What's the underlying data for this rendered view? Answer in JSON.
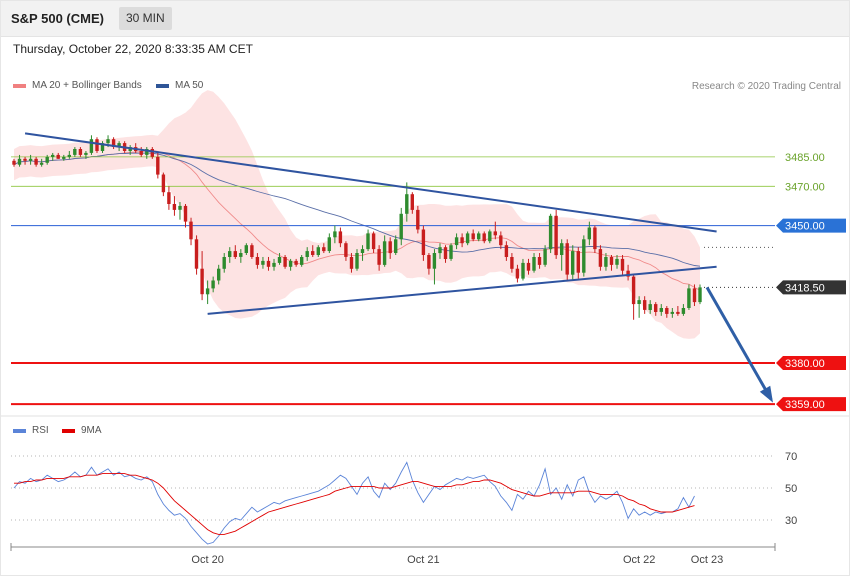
{
  "header": {
    "title": "S&P 500 (CME)",
    "timeframe": "30 MIN"
  },
  "timestamp": "Thursday, October 22, 2020 8:33:35 AM CET",
  "credit": "Research © 2020 Trading Central",
  "legend_main": [
    {
      "label": "MA 20 + Bollinger Bands",
      "color": "#f08080"
    },
    {
      "label": "MA 50",
      "color": "#2f5597"
    }
  ],
  "legend_rsi": [
    {
      "label": "RSI",
      "color": "#5b84d8"
    },
    {
      "label": "9MA",
      "color": "#e00000"
    }
  ],
  "chart_data": [
    {
      "type": "candlestick",
      "ylim": [
        3355,
        3515
      ],
      "price_levels": [
        {
          "value": 3485.0,
          "label": "3485.00",
          "color": "#8dc63f",
          "style": "resistance"
        },
        {
          "value": 3470.0,
          "label": "3470.00",
          "color": "#8dc63f",
          "style": "resistance"
        },
        {
          "value": 3450.0,
          "label": "3450.00",
          "color": "#2a5fd6",
          "style": "pivot"
        },
        {
          "value": 3418.5,
          "label": "3418.50",
          "color": "#333333",
          "style": "last"
        },
        {
          "value": 3380.0,
          "label": "3380.00",
          "color": "#ee1111",
          "style": "support"
        },
        {
          "value": 3359.0,
          "label": "3359.00",
          "color": "#ee1111",
          "style": "support"
        }
      ],
      "candles": [
        [
          3483,
          3484,
          3480,
          3481
        ],
        [
          3481,
          3486,
          3480,
          3484
        ],
        [
          3484,
          3485,
          3481,
          3483
        ],
        [
          3483,
          3486,
          3481,
          3484
        ],
        [
          3484,
          3485,
          3480,
          3481
        ],
        [
          3481,
          3484,
          3480,
          3482
        ],
        [
          3482,
          3486,
          3481,
          3485
        ],
        [
          3485,
          3487,
          3483,
          3486
        ],
        [
          3486,
          3487,
          3484,
          3484
        ],
        [
          3484,
          3486,
          3483,
          3485
        ],
        [
          3485,
          3488,
          3484,
          3486
        ],
        [
          3486,
          3490,
          3485,
          3489
        ],
        [
          3489,
          3490,
          3485,
          3486
        ],
        [
          3486,
          3488,
          3484,
          3487
        ],
        [
          3487,
          3496,
          3486,
          3494
        ],
        [
          3494,
          3495,
          3487,
          3488
        ],
        [
          3488,
          3493,
          3487,
          3492
        ],
        [
          3492,
          3496,
          3490,
          3494
        ],
        [
          3494,
          3495,
          3489,
          3490
        ],
        [
          3490,
          3493,
          3488,
          3492
        ],
        [
          3492,
          3493,
          3487,
          3488
        ],
        [
          3488,
          3491,
          3486,
          3490
        ],
        [
          3490,
          3492,
          3487,
          3488
        ],
        [
          3488,
          3490,
          3485,
          3486
        ],
        [
          3486,
          3490,
          3484,
          3489
        ],
        [
          3489,
          3490,
          3484,
          3485
        ],
        [
          3485,
          3487,
          3474,
          3476
        ],
        [
          3476,
          3477,
          3465,
          3467
        ],
        [
          3467,
          3470,
          3458,
          3461
        ],
        [
          3461,
          3465,
          3455,
          3458
        ],
        [
          3458,
          3462,
          3453,
          3460
        ],
        [
          3460,
          3461,
          3449,
          3452
        ],
        [
          3452,
          3454,
          3440,
          3443
        ],
        [
          3443,
          3445,
          3425,
          3428
        ],
        [
          3428,
          3437,
          3412,
          3415
        ],
        [
          3415,
          3422,
          3410,
          3418
        ],
        [
          3418,
          3424,
          3416,
          3422
        ],
        [
          3422,
          3430,
          3420,
          3428
        ],
        [
          3428,
          3436,
          3426,
          3434
        ],
        [
          3434,
          3439,
          3431,
          3437
        ],
        [
          3437,
          3440,
          3433,
          3434
        ],
        [
          3434,
          3438,
          3431,
          3436
        ],
        [
          3436,
          3441,
          3435,
          3440
        ],
        [
          3440,
          3441,
          3433,
          3434
        ],
        [
          3434,
          3436,
          3428,
          3430
        ],
        [
          3430,
          3434,
          3428,
          3432
        ],
        [
          3432,
          3434,
          3427,
          3429
        ],
        [
          3429,
          3433,
          3427,
          3431
        ],
        [
          3431,
          3436,
          3430,
          3434
        ],
        [
          3434,
          3435,
          3428,
          3429
        ],
        [
          3429,
          3433,
          3427,
          3432
        ],
        [
          3432,
          3433,
          3429,
          3430
        ],
        [
          3430,
          3435,
          3429,
          3434
        ],
        [
          3434,
          3439,
          3432,
          3437
        ],
        [
          3437,
          3440,
          3434,
          3435
        ],
        [
          3435,
          3440,
          3434,
          3439
        ],
        [
          3439,
          3441,
          3436,
          3437
        ],
        [
          3437,
          3446,
          3436,
          3444
        ],
        [
          3444,
          3450,
          3441,
          3447
        ],
        [
          3447,
          3449,
          3439,
          3441
        ],
        [
          3441,
          3442,
          3432,
          3434
        ],
        [
          3434,
          3436,
          3426,
          3428
        ],
        [
          3428,
          3438,
          3427,
          3436
        ],
        [
          3436,
          3440,
          3432,
          3438
        ],
        [
          3438,
          3448,
          3437,
          3446
        ],
        [
          3446,
          3447,
          3436,
          3438
        ],
        [
          3438,
          3440,
          3427,
          3430
        ],
        [
          3430,
          3445,
          3429,
          3442
        ],
        [
          3442,
          3444,
          3433,
          3436
        ],
        [
          3436,
          3445,
          3435,
          3443
        ],
        [
          3443,
          3459,
          3440,
          3456
        ],
        [
          3456,
          3472,
          3452,
          3466
        ],
        [
          3466,
          3467,
          3456,
          3458
        ],
        [
          3458,
          3460,
          3446,
          3448
        ],
        [
          3448,
          3450,
          3432,
          3435
        ],
        [
          3435,
          3436,
          3425,
          3428
        ],
        [
          3428,
          3438,
          3420,
          3436
        ],
        [
          3436,
          3441,
          3433,
          3439
        ],
        [
          3439,
          3440,
          3431,
          3433
        ],
        [
          3433,
          3441,
          3432,
          3440
        ],
        [
          3440,
          3446,
          3438,
          3444
        ],
        [
          3444,
          3446,
          3439,
          3441
        ],
        [
          3441,
          3447,
          3440,
          3446
        ],
        [
          3446,
          3448,
          3442,
          3443
        ],
        [
          3443,
          3447,
          3442,
          3446
        ],
        [
          3446,
          3447,
          3441,
          3442
        ],
        [
          3442,
          3448,
          3441,
          3447
        ],
        [
          3447,
          3452,
          3443,
          3445
        ],
        [
          3445,
          3447,
          3438,
          3440
        ],
        [
          3440,
          3442,
          3432,
          3434
        ],
        [
          3434,
          3436,
          3426,
          3428
        ],
        [
          3428,
          3430,
          3421,
          3423
        ],
        [
          3423,
          3433,
          3422,
          3431
        ],
        [
          3431,
          3433,
          3425,
          3427
        ],
        [
          3427,
          3436,
          3426,
          3434
        ],
        [
          3434,
          3436,
          3428,
          3430
        ],
        [
          3430,
          3440,
          3429,
          3438
        ],
        [
          3438,
          3456,
          3436,
          3455
        ],
        [
          3455,
          3458,
          3433,
          3435
        ],
        [
          3435,
          3443,
          3427,
          3441
        ],
        [
          3441,
          3443,
          3422,
          3425
        ],
        [
          3425,
          3440,
          3422,
          3437
        ],
        [
          3437,
          3439,
          3423,
          3426
        ],
        [
          3426,
          3445,
          3424,
          3443
        ],
        [
          3443,
          3452,
          3440,
          3449
        ],
        [
          3449,
          3450,
          3436,
          3438
        ],
        [
          3438,
          3440,
          3427,
          3429
        ],
        [
          3429,
          3436,
          3427,
          3434
        ],
        [
          3434,
          3435,
          3427,
          3430
        ],
        [
          3430,
          3435,
          3428,
          3433
        ],
        [
          3433,
          3435,
          3425,
          3427
        ],
        [
          3427,
          3430,
          3422,
          3424
        ],
        [
          3424,
          3425,
          3402,
          3410
        ],
        [
          3410,
          3414,
          3403,
          3412
        ],
        [
          3412,
          3414,
          3405,
          3407
        ],
        [
          3407,
          3412,
          3405,
          3410
        ],
        [
          3410,
          3411,
          3404,
          3406
        ],
        [
          3406,
          3410,
          3404,
          3408
        ],
        [
          3408,
          3409,
          3403,
          3405
        ],
        [
          3405,
          3408,
          3403,
          3406
        ],
        [
          3406,
          3409,
          3404,
          3405
        ],
        [
          3405,
          3410,
          3404,
          3408
        ],
        [
          3408,
          3420,
          3407,
          3418
        ],
        [
          3418,
          3420,
          3409,
          3411
        ],
        [
          3411,
          3420,
          3410,
          3418.5
        ]
      ],
      "trendlines": [
        {
          "name": "upper",
          "from": [
            2,
            3497
          ],
          "to": [
            127,
            3447
          ]
        },
        {
          "name": "lower",
          "from": [
            35,
            3405
          ],
          "to": [
            127,
            3429
          ]
        }
      ],
      "projection": {
        "from_price": 3418.5,
        "to_price": 3359
      }
    },
    {
      "type": "line",
      "title": "RSI",
      "ylim": [
        10,
        80
      ],
      "levels": [
        70,
        50,
        30
      ],
      "x_ticks": [
        "Oct 20",
        "Oct 21",
        "Oct 22",
        "Oct 23"
      ],
      "series": [
        {
          "name": "RSI",
          "values": [
            50,
            54,
            53,
            56,
            54,
            55,
            58,
            56,
            54,
            55,
            57,
            60,
            57,
            58,
            63,
            58,
            60,
            62,
            58,
            60,
            57,
            58,
            56,
            55,
            57,
            54,
            46,
            40,
            36,
            33,
            34,
            31,
            26,
            22,
            18,
            15,
            16,
            20,
            25,
            29,
            31,
            30,
            34,
            38,
            35,
            37,
            39,
            41,
            40,
            42,
            43,
            44,
            45,
            46,
            47,
            48,
            50,
            52,
            55,
            58,
            56,
            51,
            46,
            53,
            57,
            48,
            44,
            53,
            49,
            53,
            60,
            66,
            55,
            47,
            41,
            46,
            51,
            49,
            52,
            54,
            56,
            55,
            57,
            56,
            57,
            58,
            54,
            51,
            45,
            41,
            36,
            46,
            43,
            48,
            45,
            52,
            62,
            46,
            50,
            43,
            52,
            45,
            55,
            57,
            47,
            41,
            45,
            43,
            45,
            48,
            41,
            31,
            37,
            33,
            35,
            33,
            35,
            34,
            35,
            35,
            37,
            44,
            38,
            45
          ]
        },
        {
          "name": "9MA",
          "values": [
            53,
            53,
            54,
            54,
            55,
            55,
            56,
            56,
            56,
            56,
            57,
            57,
            57,
            58,
            58,
            58,
            59,
            59,
            59,
            59,
            59,
            58,
            58,
            57,
            56,
            55,
            53,
            50,
            46,
            42,
            39,
            36,
            33,
            30,
            27,
            24,
            22,
            21,
            21,
            22,
            23,
            25,
            27,
            29,
            31,
            33,
            35,
            36,
            37,
            38,
            39,
            40,
            41,
            42,
            43,
            44,
            45,
            46,
            48,
            49,
            50,
            51,
            51,
            51,
            51,
            51,
            50,
            50,
            50,
            51,
            52,
            53,
            54,
            54,
            53,
            52,
            51,
            51,
            51,
            51,
            52,
            52,
            53,
            54,
            54,
            55,
            55,
            54,
            53,
            51,
            49,
            48,
            47,
            46,
            45,
            45,
            46,
            47,
            47,
            47,
            47,
            47,
            48,
            48,
            48,
            47,
            46,
            46,
            46,
            46,
            45,
            43,
            42,
            40,
            39,
            37,
            36,
            35,
            35,
            35,
            36,
            37,
            38,
            39
          ]
        }
      ]
    }
  ]
}
